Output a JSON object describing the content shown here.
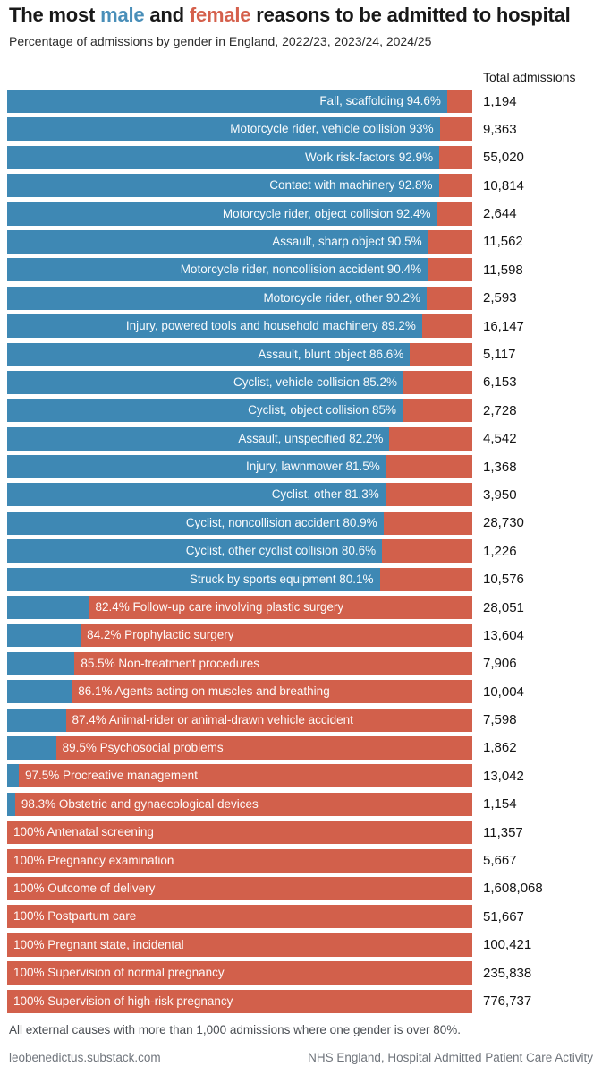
{
  "title": {
    "part1": "The most ",
    "male_word": "male",
    "part2": " and ",
    "female_word": "female",
    "part3": " reasons to be admitted to hospital"
  },
  "subtitle": "Percentage of admissions by gender in England, 2022/23, 2023/24, 2024/25",
  "column_header": "Total admissions",
  "footnote": "All external causes with more than 1,000 admissions where one gender is over 80%.",
  "source_left": "leobenedictus.substack.com",
  "source_right": "NHS England, Hospital Admitted Patient Care Activity",
  "colors": {
    "male_bar": "#3e88b4",
    "female_bar": "#d2604b",
    "title_male_word": "#4a8fb9",
    "title_female_word": "#d5604c"
  },
  "chart_data": {
    "type": "bar",
    "orientation": "horizontal",
    "stacked": true,
    "title": "The most male and female reasons to be admitted to hospital",
    "subtitle": "Percentage of admissions by gender in England, 2022/23, 2023/24, 2024/25",
    "xlabel": "Percentage of admissions by gender",
    "xlim": [
      0,
      100
    ],
    "legend": [
      "male",
      "female"
    ],
    "legend_position": "in-title",
    "grid": false,
    "value_column_header": "Total admissions",
    "rows": [
      {
        "label": "Fall, scaffolding",
        "dominant": "male",
        "pct_label": "94.6%",
        "male_pct": 94.6,
        "female_pct": 5.4,
        "total": "1,194"
      },
      {
        "label": "Motorcycle rider, vehicle collision",
        "dominant": "male",
        "pct_label": "93%",
        "male_pct": 93,
        "female_pct": 7,
        "total": "9,363"
      },
      {
        "label": "Work risk-factors",
        "dominant": "male",
        "pct_label": "92.9%",
        "male_pct": 92.9,
        "female_pct": 7.1,
        "total": "55,020"
      },
      {
        "label": "Contact with machinery",
        "dominant": "male",
        "pct_label": "92.8%",
        "male_pct": 92.8,
        "female_pct": 7.2,
        "total": "10,814"
      },
      {
        "label": "Motorcycle rider, object collision",
        "dominant": "male",
        "pct_label": "92.4%",
        "male_pct": 92.4,
        "female_pct": 7.6,
        "total": "2,644"
      },
      {
        "label": "Assault, sharp object",
        "dominant": "male",
        "pct_label": "90.5%",
        "male_pct": 90.5,
        "female_pct": 9.5,
        "total": "11,562"
      },
      {
        "label": "Motorcycle rider, noncollision accident",
        "dominant": "male",
        "pct_label": "90.4%",
        "male_pct": 90.4,
        "female_pct": 9.6,
        "total": "11,598"
      },
      {
        "label": "Motorcycle rider, other",
        "dominant": "male",
        "pct_label": "90.2%",
        "male_pct": 90.2,
        "female_pct": 9.8,
        "total": "2,593"
      },
      {
        "label": "Injury, powered tools and household machinery",
        "dominant": "male",
        "pct_label": "89.2%",
        "male_pct": 89.2,
        "female_pct": 10.8,
        "total": "16,147"
      },
      {
        "label": "Assault, blunt object",
        "dominant": "male",
        "pct_label": "86.6%",
        "male_pct": 86.6,
        "female_pct": 13.4,
        "total": "5,117"
      },
      {
        "label": "Cyclist, vehicle collision",
        "dominant": "male",
        "pct_label": "85.2%",
        "male_pct": 85.2,
        "female_pct": 14.8,
        "total": "6,153"
      },
      {
        "label": "Cyclist, object collision",
        "dominant": "male",
        "pct_label": "85%",
        "male_pct": 85,
        "female_pct": 15,
        "total": "2,728"
      },
      {
        "label": "Assault, unspecified",
        "dominant": "male",
        "pct_label": "82.2%",
        "male_pct": 82.2,
        "female_pct": 17.8,
        "total": "4,542"
      },
      {
        "label": "Injury, lawnmower",
        "dominant": "male",
        "pct_label": "81.5%",
        "male_pct": 81.5,
        "female_pct": 18.5,
        "total": "1,368"
      },
      {
        "label": "Cyclist, other",
        "dominant": "male",
        "pct_label": "81.3%",
        "male_pct": 81.3,
        "female_pct": 18.7,
        "total": "3,950"
      },
      {
        "label": "Cyclist, noncollision accident",
        "dominant": "male",
        "pct_label": "80.9%",
        "male_pct": 80.9,
        "female_pct": 19.1,
        "total": "28,730"
      },
      {
        "label": "Cyclist, other cyclist collision",
        "dominant": "male",
        "pct_label": "80.6%",
        "male_pct": 80.6,
        "female_pct": 19.4,
        "total": "1,226"
      },
      {
        "label": "Struck by sports equipment",
        "dominant": "male",
        "pct_label": "80.1%",
        "male_pct": 80.1,
        "female_pct": 19.9,
        "total": "10,576"
      },
      {
        "label": "Follow-up care involving plastic surgery",
        "dominant": "female",
        "pct_label": "82.4%",
        "male_pct": 17.6,
        "female_pct": 82.4,
        "total": "28,051"
      },
      {
        "label": "Prophylactic surgery",
        "dominant": "female",
        "pct_label": "84.2%",
        "male_pct": 15.8,
        "female_pct": 84.2,
        "total": "13,604"
      },
      {
        "label": "Non-treatment procedures",
        "dominant": "female",
        "pct_label": "85.5%",
        "male_pct": 14.5,
        "female_pct": 85.5,
        "total": "7,906"
      },
      {
        "label": "Agents acting on muscles and breathing",
        "dominant": "female",
        "pct_label": "86.1%",
        "male_pct": 13.9,
        "female_pct": 86.1,
        "total": "10,004"
      },
      {
        "label": "Animal-rider or animal-drawn vehicle accident",
        "dominant": "female",
        "pct_label": "87.4%",
        "male_pct": 12.6,
        "female_pct": 87.4,
        "total": "7,598"
      },
      {
        "label": "Psychosocial problems",
        "dominant": "female",
        "pct_label": "89.5%",
        "male_pct": 10.5,
        "female_pct": 89.5,
        "total": "1,862"
      },
      {
        "label": "Procreative management",
        "dominant": "female",
        "pct_label": "97.5%",
        "male_pct": 2.5,
        "female_pct": 97.5,
        "total": "13,042"
      },
      {
        "label": "Obstetric and gynaecological devices",
        "dominant": "female",
        "pct_label": "98.3%",
        "male_pct": 1.7,
        "female_pct": 98.3,
        "total": "1,154"
      },
      {
        "label": "Antenatal screening",
        "dominant": "female",
        "pct_label": "100%",
        "male_pct": 0,
        "female_pct": 100,
        "total": "11,357"
      },
      {
        "label": "Pregnancy examination",
        "dominant": "female",
        "pct_label": "100%",
        "male_pct": 0,
        "female_pct": 100,
        "total": "5,667"
      },
      {
        "label": "Outcome of delivery",
        "dominant": "female",
        "pct_label": "100%",
        "male_pct": 0,
        "female_pct": 100,
        "total": "1,608,068"
      },
      {
        "label": "Postpartum care",
        "dominant": "female",
        "pct_label": "100%",
        "male_pct": 0,
        "female_pct": 100,
        "total": "51,667"
      },
      {
        "label": "Pregnant state, incidental",
        "dominant": "female",
        "pct_label": "100%",
        "male_pct": 0,
        "female_pct": 100,
        "total": "100,421"
      },
      {
        "label": "Supervision of normal pregnancy",
        "dominant": "female",
        "pct_label": "100%",
        "male_pct": 0,
        "female_pct": 100,
        "total": "235,838"
      },
      {
        "label": "Supervision of high-risk pregnancy",
        "dominant": "female",
        "pct_label": "100%",
        "male_pct": 0,
        "female_pct": 100,
        "total": "776,737"
      }
    ]
  }
}
